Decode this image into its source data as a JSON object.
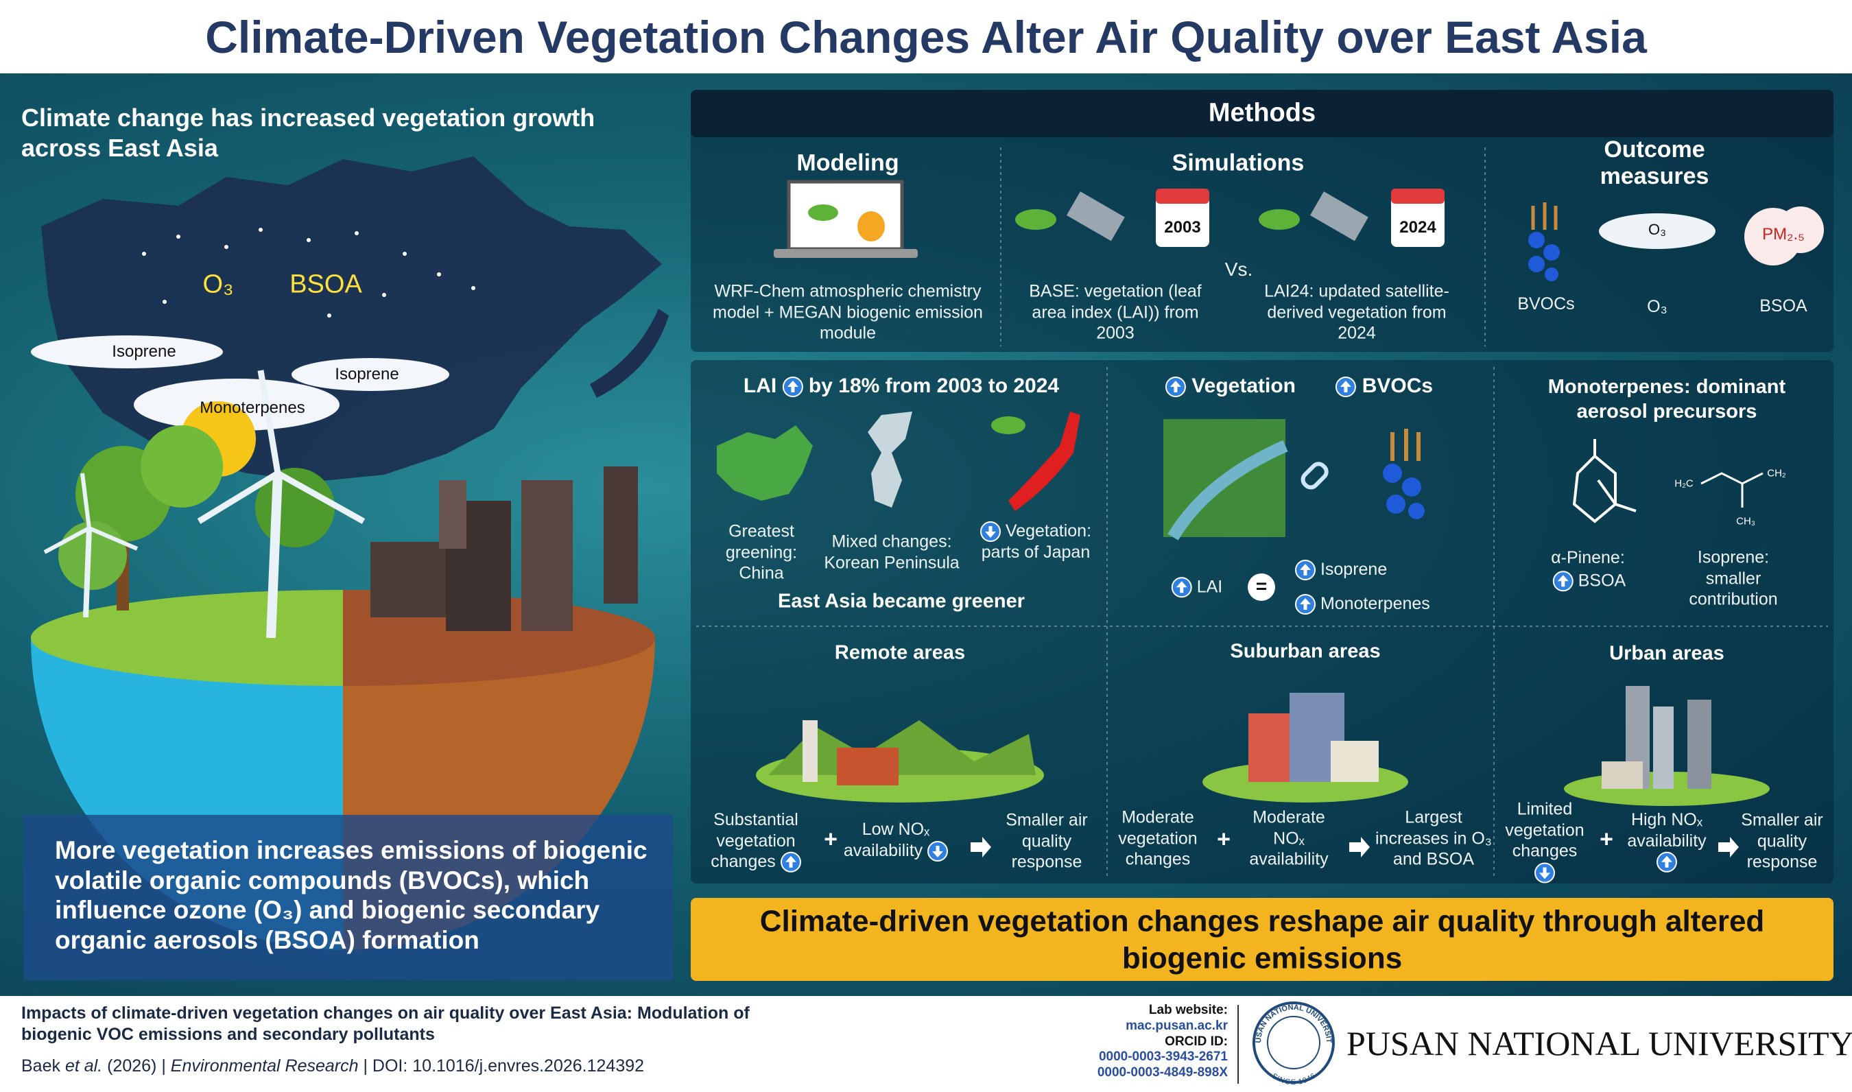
{
  "header": {
    "title": "Climate-Driven Vegetation Changes Alter Air Quality over East Asia"
  },
  "left_panel": {
    "headline": "Climate change has increased vegetation growth across East Asia",
    "map_o3": "O₃",
    "map_bsoa": "BSOA",
    "clouds": [
      "Isoprene",
      "Monoterpenes",
      "Isoprene"
    ],
    "summary": "More vegetation increases emissions of biogenic volatile organic compounds (BVOCs), which influence ozone (O₃) and biogenic secondary organic aerosols (BSOA) formation"
  },
  "methods": {
    "title": "Methods",
    "modeling": {
      "title": "Modeling",
      "text": "WRF-Chem atmospheric chemistry model + MEGAN biogenic emission module"
    },
    "simulations": {
      "title": "Simulations",
      "base_year": "2003",
      "base_text": "BASE: vegetation (leaf area index (LAI)) from 2003",
      "vs": "Vs.",
      "lai24_year": "2024",
      "lai24_text": "LAI24: updated satellite-derived vegetation from 2024"
    },
    "outcomes": {
      "title": "Outcome measures",
      "items": [
        "BVOCs",
        "O₃",
        "BSOA"
      ],
      "o3_icon": "O₃",
      "pm_icon": "PM₂.₅"
    }
  },
  "lai_panel": {
    "title_prefix": "LAI",
    "title_suffix": "by 18% from 2003 to 2024",
    "regions": [
      "Greatest greening: China",
      "Mixed changes: Korean Peninsula",
      "Vegetation: parts of Japan"
    ],
    "conclusion": "East Asia became greener"
  },
  "vegetation_panel": {
    "left": "Vegetation",
    "right": "BVOCs",
    "lai": "LAI",
    "equals": "=",
    "isoprene": "Isoprene",
    "monoterpenes": "Monoterpenes"
  },
  "monoterpenes_panel": {
    "title": "Monoterpenes: dominant aerosol precursors",
    "alpha_pinene": "α-Pinene:",
    "alpha_result": "BSOA",
    "isoprene": "Isoprene: smaller contribution",
    "chem_labels": [
      "H₂C",
      "CH₂",
      "CH₃"
    ]
  },
  "areas": [
    {
      "title": "Remote areas",
      "vegetation": "Substantial vegetation changes",
      "plus": "+",
      "nox": "Low NOₓ availability",
      "result": "Smaller air quality response"
    },
    {
      "title": "Suburban areas",
      "vegetation": "Moderate vegetation changes",
      "plus": "+",
      "nox": "Moderate NOₓ availability",
      "result": "Largest increases in O₃ and BSOA"
    },
    {
      "title": "Urban areas",
      "vegetation": "Limited vegetation changes",
      "plus": "+",
      "nox": "High NOₓ availability",
      "result": "Smaller air quality response"
    }
  ],
  "conclusion": "Climate-driven vegetation changes reshape air quality through altered biogenic emissions",
  "footer": {
    "paper_title": "Impacts of climate-driven vegetation changes on air quality over East Asia: Modulation of biogenic VOC emissions and secondary pollutants",
    "authors": "Baek",
    "et_al": "et al.",
    "year": "(2026)",
    "separator": "|",
    "journal": "Environmental Research",
    "doi": "DOI: 10.1016/j.envres.2026.124392",
    "lab_label": "Lab website:",
    "lab_url": "mac.pusan.ac.kr",
    "orcid_label": "ORCID ID:",
    "orcids": [
      "0000-0003-3943-2671",
      "0000-0003-4849-898X"
    ],
    "seal_text": "PUSAN NATIONAL UNIVERSITY",
    "seal_year": "SINCE 1946",
    "university": "PUSAN NATIONAL UNIVERSITY"
  }
}
